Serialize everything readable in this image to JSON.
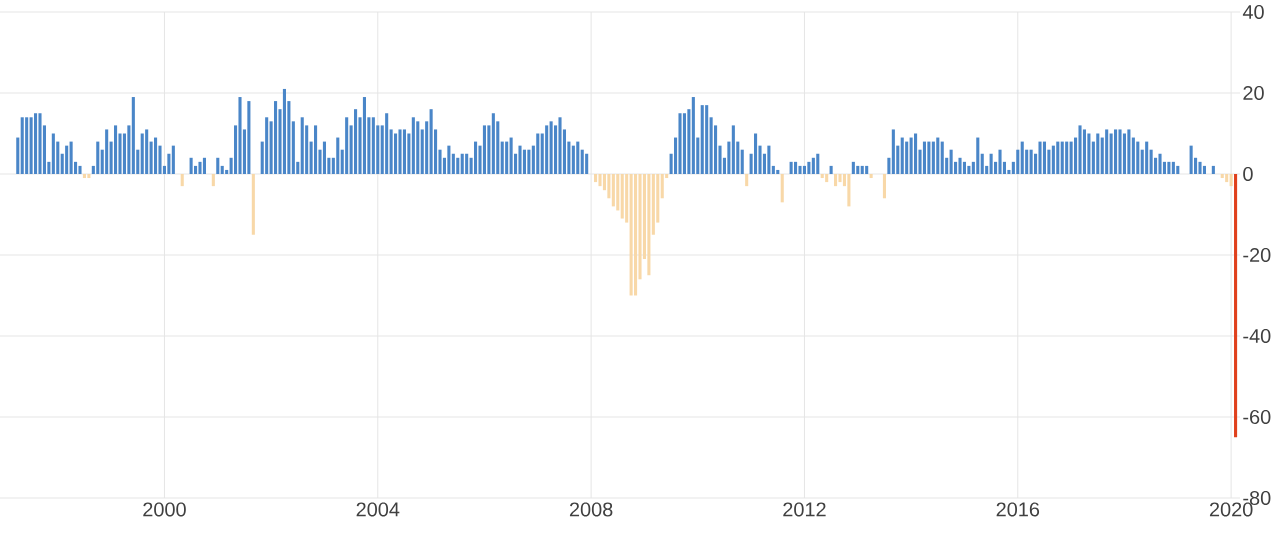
{
  "chart_data": {
    "type": "bar",
    "x": [
      "1997-04",
      "1997-05",
      "1997-06",
      "1997-07",
      "1997-08",
      "1997-09",
      "1997-10",
      "1997-11",
      "1997-12",
      "1998-01",
      "1998-02",
      "1998-03",
      "1998-04",
      "1998-05",
      "1998-06",
      "1998-07",
      "1998-08",
      "1998-09",
      "1998-10",
      "1998-11",
      "1998-12",
      "1999-01",
      "1999-02",
      "1999-03",
      "1999-04",
      "1999-05",
      "1999-06",
      "1999-07",
      "1999-08",
      "1999-09",
      "1999-10",
      "1999-11",
      "1999-12",
      "2000-01",
      "2000-02",
      "2000-03",
      "2000-04",
      "2000-05",
      "2000-06",
      "2000-07",
      "2000-08",
      "2000-09",
      "2000-10",
      "2000-11",
      "2000-12",
      "2001-01",
      "2001-02",
      "2001-03",
      "2001-04",
      "2001-05",
      "2001-06",
      "2001-07",
      "2001-08",
      "2001-09",
      "2001-10",
      "2001-11",
      "2001-12",
      "2002-01",
      "2002-02",
      "2002-03",
      "2002-04",
      "2002-05",
      "2002-06",
      "2002-07",
      "2002-08",
      "2002-09",
      "2002-10",
      "2002-11",
      "2002-12",
      "2003-01",
      "2003-02",
      "2003-03",
      "2003-04",
      "2003-05",
      "2003-06",
      "2003-07",
      "2003-08",
      "2003-09",
      "2003-10",
      "2003-11",
      "2003-12",
      "2004-01",
      "2004-02",
      "2004-03",
      "2004-04",
      "2004-05",
      "2004-06",
      "2004-07",
      "2004-08",
      "2004-09",
      "2004-10",
      "2004-11",
      "2004-12",
      "2005-01",
      "2005-02",
      "2005-03",
      "2005-04",
      "2005-05",
      "2005-06",
      "2005-07",
      "2005-08",
      "2005-09",
      "2005-10",
      "2005-11",
      "2005-12",
      "2006-01",
      "2006-02",
      "2006-03",
      "2006-04",
      "2006-05",
      "2006-06",
      "2006-07",
      "2006-08",
      "2006-09",
      "2006-10",
      "2006-11",
      "2006-12",
      "2007-01",
      "2007-02",
      "2007-03",
      "2007-04",
      "2007-05",
      "2007-06",
      "2007-07",
      "2007-08",
      "2007-09",
      "2007-10",
      "2007-11",
      "2007-12",
      "2008-01",
      "2008-02",
      "2008-03",
      "2008-04",
      "2008-05",
      "2008-06",
      "2008-07",
      "2008-08",
      "2008-09",
      "2008-10",
      "2008-11",
      "2008-12",
      "2009-01",
      "2009-02",
      "2009-03",
      "2009-04",
      "2009-05",
      "2009-06",
      "2009-07",
      "2009-08",
      "2009-09",
      "2009-10",
      "2009-11",
      "2009-12",
      "2010-01",
      "2010-02",
      "2010-03",
      "2010-04",
      "2010-05",
      "2010-06",
      "2010-07",
      "2010-08",
      "2010-09",
      "2010-10",
      "2010-11",
      "2010-12",
      "2011-01",
      "2011-02",
      "2011-03",
      "2011-04",
      "2011-05",
      "2011-06",
      "2011-07",
      "2011-08",
      "2011-09",
      "2011-10",
      "2011-11",
      "2011-12",
      "2012-01",
      "2012-02",
      "2012-03",
      "2012-04",
      "2012-05",
      "2012-06",
      "2012-07",
      "2012-08",
      "2012-09",
      "2012-10",
      "2012-11",
      "2012-12",
      "2013-01",
      "2013-02",
      "2013-03",
      "2013-04",
      "2013-05",
      "2013-06",
      "2013-07",
      "2013-08",
      "2013-09",
      "2013-10",
      "2013-11",
      "2013-12",
      "2014-01",
      "2014-02",
      "2014-03",
      "2014-04",
      "2014-05",
      "2014-06",
      "2014-07",
      "2014-08",
      "2014-09",
      "2014-10",
      "2014-11",
      "2014-12",
      "2015-01",
      "2015-02",
      "2015-03",
      "2015-04",
      "2015-05",
      "2015-06",
      "2015-07",
      "2015-08",
      "2015-09",
      "2015-10",
      "2015-11",
      "2015-12",
      "2016-01",
      "2016-02",
      "2016-03",
      "2016-04",
      "2016-05",
      "2016-06",
      "2016-07",
      "2016-08",
      "2016-09",
      "2016-10",
      "2016-11",
      "2016-12",
      "2017-01",
      "2017-02",
      "2017-03",
      "2017-04",
      "2017-05",
      "2017-06",
      "2017-07",
      "2017-08",
      "2017-09",
      "2017-10",
      "2017-11",
      "2017-12",
      "2018-01",
      "2018-02",
      "2018-03",
      "2018-04",
      "2018-05",
      "2018-06",
      "2018-07",
      "2018-08",
      "2018-09",
      "2018-10",
      "2018-11",
      "2018-12",
      "2019-01",
      "2019-02",
      "2019-03",
      "2019-04",
      "2019-05",
      "2019-06",
      "2019-07",
      "2019-08",
      "2019-09",
      "2019-10",
      "2019-11",
      "2019-12",
      "2020-01",
      "2020-02"
    ],
    "values": [
      9,
      14,
      14,
      14,
      15,
      15,
      12,
      3,
      10,
      8,
      5,
      7,
      8,
      3,
      2,
      -1,
      -1,
      2,
      8,
      6,
      11,
      8,
      12,
      10,
      10,
      12,
      19,
      6,
      10,
      11,
      8,
      9,
      7,
      2,
      5,
      7,
      0,
      -3,
      0,
      4,
      2,
      3,
      4,
      0,
      -3,
      4,
      2,
      1,
      4,
      12,
      19,
      11,
      18,
      -15,
      0,
      8,
      14,
      13,
      18,
      16,
      21,
      18,
      13,
      3,
      14,
      12,
      8,
      12,
      6,
      8,
      4,
      4,
      9,
      6,
      14,
      12,
      16,
      14,
      19,
      14,
      14,
      12,
      12,
      15,
      11,
      10,
      11,
      11,
      10,
      14,
      13,
      11,
      13,
      16,
      11,
      6,
      4,
      7,
      5,
      4,
      5,
      5,
      4,
      8,
      7,
      12,
      12,
      15,
      13,
      8,
      8,
      9,
      5,
      7,
      6,
      6,
      7,
      10,
      10,
      12,
      13,
      12,
      14,
      11,
      8,
      7,
      8,
      6,
      5,
      0,
      -2,
      -3,
      -4,
      -6,
      -8,
      -9,
      -11,
      -12,
      -30,
      -30,
      -26,
      -21,
      -25,
      -15,
      -12,
      -6,
      -1,
      5,
      9,
      15,
      15,
      16,
      19,
      9,
      17,
      17,
      14,
      12,
      7,
      4,
      8,
      12,
      8,
      6,
      -3,
      5,
      10,
      7,
      5,
      7,
      2,
      1,
      -7,
      0,
      3,
      3,
      2,
      2,
      3,
      4,
      5,
      -1,
      -2,
      2,
      -3,
      -2,
      -3,
      -8,
      3,
      2,
      2,
      2,
      -1,
      0,
      0,
      -6,
      4,
      11,
      7,
      9,
      8,
      9,
      10,
      6,
      8,
      8,
      8,
      9,
      8,
      4,
      6,
      3,
      4,
      3,
      2,
      3,
      9,
      5,
      2,
      5,
      3,
      6,
      3,
      1,
      3,
      6,
      8,
      6,
      6,
      5,
      8,
      8,
      6,
      7,
      8,
      8,
      8,
      8,
      9,
      12,
      11,
      10,
      8,
      10,
      9,
      11,
      10,
      11,
      11,
      10,
      11,
      9,
      8,
      6,
      8,
      6,
      4,
      5,
      3,
      3,
      3,
      2,
      0,
      0,
      7,
      4,
      3,
      2,
      0,
      2,
      0,
      -1,
      -2,
      -3,
      -65
    ],
    "colors": [
      "#4a86c8",
      "#4a86c8",
      "#4a86c8",
      "#4a86c8",
      "#4a86c8",
      "#4a86c8",
      "#4a86c8",
      "#4a86c8",
      "#4a86c8",
      "#4a86c8",
      "#4a86c8",
      "#4a86c8",
      "#4a86c8",
      "#4a86c8",
      "#4a86c8",
      "#f8d8a8",
      "#f8d8a8",
      "#4a86c8",
      "#4a86c8",
      "#4a86c8",
      "#4a86c8",
      "#4a86c8",
      "#4a86c8",
      "#4a86c8",
      "#4a86c8",
      "#4a86c8",
      "#4a86c8",
      "#4a86c8",
      "#4a86c8",
      "#4a86c8",
      "#4a86c8",
      "#4a86c8",
      "#4a86c8",
      "#4a86c8",
      "#4a86c8",
      "#4a86c8",
      "#4a86c8",
      "#f8d8a8",
      "#4a86c8",
      "#4a86c8",
      "#4a86c8",
      "#4a86c8",
      "#4a86c8",
      "#4a86c8",
      "#f8d8a8",
      "#4a86c8",
      "#4a86c8",
      "#4a86c8",
      "#4a86c8",
      "#4a86c8",
      "#4a86c8",
      "#4a86c8",
      "#4a86c8",
      "#f8d8a8",
      "#4a86c8",
      "#4a86c8",
      "#4a86c8",
      "#4a86c8",
      "#4a86c8",
      "#4a86c8",
      "#4a86c8",
      "#4a86c8",
      "#4a86c8",
      "#4a86c8",
      "#4a86c8",
      "#4a86c8",
      "#4a86c8",
      "#4a86c8",
      "#4a86c8",
      "#4a86c8",
      "#4a86c8",
      "#4a86c8",
      "#4a86c8",
      "#4a86c8",
      "#4a86c8",
      "#4a86c8",
      "#4a86c8",
      "#4a86c8",
      "#4a86c8",
      "#4a86c8",
      "#4a86c8",
      "#4a86c8",
      "#4a86c8",
      "#4a86c8",
      "#4a86c8",
      "#4a86c8",
      "#4a86c8",
      "#4a86c8",
      "#4a86c8",
      "#4a86c8",
      "#4a86c8",
      "#4a86c8",
      "#4a86c8",
      "#4a86c8",
      "#4a86c8",
      "#4a86c8",
      "#4a86c8",
      "#4a86c8",
      "#4a86c8",
      "#4a86c8",
      "#4a86c8",
      "#4a86c8",
      "#4a86c8",
      "#4a86c8",
      "#4a86c8",
      "#4a86c8",
      "#4a86c8",
      "#4a86c8",
      "#4a86c8",
      "#4a86c8",
      "#4a86c8",
      "#4a86c8",
      "#4a86c8",
      "#4a86c8",
      "#4a86c8",
      "#4a86c8",
      "#4a86c8",
      "#4a86c8",
      "#4a86c8",
      "#4a86c8",
      "#4a86c8",
      "#4a86c8",
      "#4a86c8",
      "#4a86c8",
      "#4a86c8",
      "#4a86c8",
      "#4a86c8",
      "#4a86c8",
      "#4a86c8",
      "#4a86c8",
      "#f8d8a8",
      "#f8d8a8",
      "#f8d8a8",
      "#f8d8a8",
      "#f8d8a8",
      "#f8d8a8",
      "#f8d8a8",
      "#f8d8a8",
      "#f8d8a8",
      "#f8d8a8",
      "#f8d8a8",
      "#f8d8a8",
      "#f8d8a8",
      "#f8d8a8",
      "#f8d8a8",
      "#f8d8a8",
      "#f8d8a8",
      "#4a86c8",
      "#4a86c8",
      "#4a86c8",
      "#4a86c8",
      "#4a86c8",
      "#4a86c8",
      "#4a86c8",
      "#4a86c8",
      "#4a86c8",
      "#4a86c8",
      "#4a86c8",
      "#4a86c8",
      "#4a86c8",
      "#4a86c8",
      "#4a86c8",
      "#4a86c8",
      "#4a86c8",
      "#f8d8a8",
      "#4a86c8",
      "#4a86c8",
      "#4a86c8",
      "#4a86c8",
      "#4a86c8",
      "#4a86c8",
      "#4a86c8",
      "#f8d8a8",
      "#4a86c8",
      "#4a86c8",
      "#4a86c8",
      "#4a86c8",
      "#4a86c8",
      "#4a86c8",
      "#4a86c8",
      "#4a86c8",
      "#f8d8a8",
      "#f8d8a8",
      "#4a86c8",
      "#f8d8a8",
      "#f8d8a8",
      "#f8d8a8",
      "#f8d8a8",
      "#4a86c8",
      "#4a86c8",
      "#4a86c8",
      "#4a86c8",
      "#f8d8a8",
      "#4a86c8",
      "#4a86c8",
      "#f8d8a8",
      "#4a86c8",
      "#4a86c8",
      "#4a86c8",
      "#4a86c8",
      "#4a86c8",
      "#4a86c8",
      "#4a86c8",
      "#4a86c8",
      "#4a86c8",
      "#4a86c8",
      "#4a86c8",
      "#4a86c8",
      "#4a86c8",
      "#4a86c8",
      "#4a86c8",
      "#4a86c8",
      "#4a86c8",
      "#4a86c8",
      "#4a86c8",
      "#4a86c8",
      "#4a86c8",
      "#4a86c8",
      "#4a86c8",
      "#4a86c8",
      "#4a86c8",
      "#4a86c8",
      "#4a86c8",
      "#4a86c8",
      "#4a86c8",
      "#4a86c8",
      "#4a86c8",
      "#4a86c8",
      "#4a86c8",
      "#4a86c8",
      "#4a86c8",
      "#4a86c8",
      "#4a86c8",
      "#4a86c8",
      "#4a86c8",
      "#4a86c8",
      "#4a86c8",
      "#4a86c8",
      "#4a86c8",
      "#4a86c8",
      "#4a86c8",
      "#4a86c8",
      "#4a86c8",
      "#4a86c8",
      "#4a86c8",
      "#4a86c8",
      "#4a86c8",
      "#4a86c8",
      "#4a86c8",
      "#4a86c8",
      "#4a86c8",
      "#4a86c8",
      "#4a86c8",
      "#4a86c8",
      "#4a86c8",
      "#4a86c8",
      "#4a86c8",
      "#4a86c8",
      "#4a86c8",
      "#4a86c8",
      "#4a86c8",
      "#4a86c8",
      "#4a86c8",
      "#4a86c8",
      "#4a86c8",
      "#4a86c8",
      "#4a86c8",
      "#4a86c8",
      "#4a86c8",
      "#4a86c8",
      "#4a86c8",
      "#f8d8a8",
      "#f8d8a8",
      "#f8d8a8",
      "#e0401c"
    ],
    "xlim": [
      "1996-12",
      "2020-03"
    ],
    "ylim": [
      -80,
      40
    ],
    "xticks": [
      "2000",
      "2004",
      "2008",
      "2012",
      "2016",
      "2020"
    ],
    "yticks": [
      -80,
      -60,
      -40,
      -20,
      0,
      20,
      40
    ],
    "grid": true
  }
}
